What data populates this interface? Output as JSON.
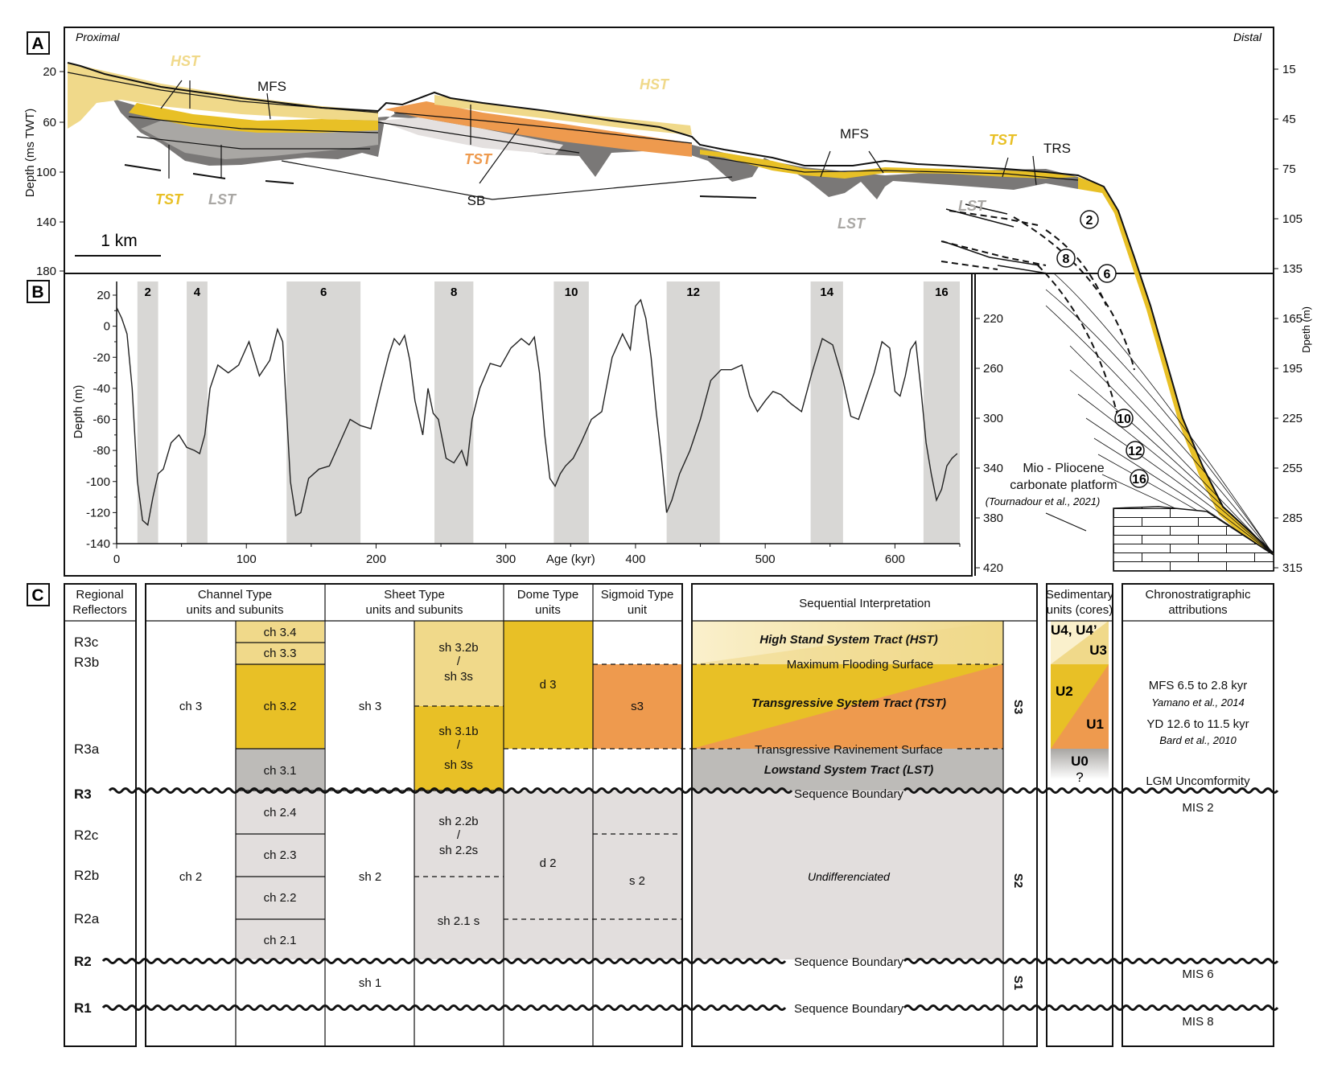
{
  "panel_a": {
    "letter": "A",
    "left_label": "Proximal",
    "right_label": "Distal",
    "left_axis_title": "Depth (ms TWT)",
    "left_ticks": [
      "20",
      "60",
      "100",
      "140",
      "180"
    ],
    "right_axis_title": "Dpeth (m)",
    "right_ticks": [
      "15",
      "45",
      "75",
      "105",
      "135",
      "165",
      "195",
      "225",
      "255",
      "285",
      "315"
    ],
    "scale_bar": "1 km",
    "labels": {
      "hst_1": "HST",
      "hst_2": "HST",
      "mfs_1": "MFS",
      "mfs_2": "MFS",
      "tst_1": "TST",
      "tst_2": "TST",
      "tst_3": "TST",
      "lst_1": "LST",
      "lst_2": "LST",
      "lst_3": "LST",
      "sb": "SB",
      "trs": "TRS"
    },
    "circled": [
      "2",
      "6",
      "8",
      "10",
      "12",
      "16"
    ],
    "platform_line1": "Mio - Pliocene",
    "platform_line2": "carbonate platform",
    "platform_ref": "(Tournadour et al., 2021)"
  },
  "panel_b": {
    "letter": "B",
    "right_ticks": [
      "220",
      "260",
      "300",
      "340",
      "380",
      "420"
    ]
  },
  "chart_data": {
    "type": "line",
    "xlabel": "Age (kyr)",
    "ylabel": "Depth (m)",
    "xlim": [
      0,
      650
    ],
    "ylim": [
      -140,
      20
    ],
    "x_ticks": [
      "0",
      "100",
      "200",
      "300",
      "400",
      "500",
      "600"
    ],
    "y_ticks": [
      "20",
      "0",
      "-20",
      "-40",
      "-60",
      "-80",
      "-100",
      "-120",
      "-140"
    ],
    "mis_bands": [
      {
        "label": "2",
        "start": 16,
        "end": 32
      },
      {
        "label": "4",
        "start": 54,
        "end": 70
      },
      {
        "label": "6",
        "start": 131,
        "end": 188
      },
      {
        "label": "8",
        "start": 245,
        "end": 275
      },
      {
        "label": "10",
        "start": 337,
        "end": 364
      },
      {
        "label": "12",
        "start": 424,
        "end": 465
      },
      {
        "label": "14",
        "start": 535,
        "end": 560
      },
      {
        "label": "16",
        "start": 622,
        "end": 650
      }
    ],
    "series": [
      {
        "x": [
          0,
          4,
          8,
          12,
          16,
          20,
          24,
          28,
          32,
          36,
          42,
          48,
          54,
          60,
          64,
          68,
          72,
          78,
          86,
          94,
          102,
          110,
          118,
          124,
          128,
          132,
          134,
          138,
          142,
          148,
          156,
          164,
          172,
          180,
          188,
          196,
          204,
          210,
          214,
          218,
          222,
          226,
          230,
          236,
          240,
          244,
          248,
          254,
          260,
          266,
          270,
          274,
          280,
          288,
          296,
          304,
          312,
          318,
          322,
          326,
          330,
          334,
          338,
          342,
          346,
          352,
          358,
          366,
          374,
          382,
          390,
          396,
          400,
          404,
          408,
          412,
          416,
          420,
          424,
          428,
          434,
          442,
          450,
          458,
          466,
          474,
          482,
          488,
          494,
          500,
          506,
          512,
          520,
          528,
          536,
          544,
          552,
          560,
          566,
          572,
          578,
          584,
          590,
          596,
          600,
          604,
          608,
          612,
          616,
          620,
          624,
          628,
          632,
          636,
          640,
          644,
          648
        ],
        "y": [
          12,
          5,
          -5,
          -40,
          -100,
          -125,
          -128,
          -110,
          -95,
          -92,
          -75,
          -70,
          -78,
          -80,
          -82,
          -70,
          -40,
          -25,
          -30,
          -25,
          -10,
          -32,
          -22,
          -2,
          -10,
          -70,
          -100,
          -122,
          -120,
          -98,
          -92,
          -90,
          -75,
          -60,
          -64,
          -66,
          -38,
          -18,
          -8,
          -12,
          -6,
          -22,
          -48,
          -70,
          -40,
          -56,
          -60,
          -85,
          -88,
          -80,
          -90,
          -60,
          -40,
          -24,
          -26,
          -14,
          -8,
          -12,
          -7,
          -30,
          -70,
          -98,
          -103,
          -95,
          -90,
          -85,
          -75,
          -60,
          -55,
          -20,
          -5,
          -15,
          13,
          17,
          5,
          -20,
          -55,
          -85,
          -120,
          -112,
          -95,
          -80,
          -60,
          -35,
          -28,
          -28,
          -25,
          -45,
          -55,
          -48,
          -42,
          -44,
          -50,
          -55,
          -30,
          -8,
          -12,
          -35,
          -58,
          -60,
          -45,
          -30,
          -10,
          -14,
          -42,
          -45,
          -32,
          -15,
          -10,
          -40,
          -75,
          -95,
          -112,
          -105,
          -90,
          -85,
          -82
        ]
      }
    ]
  },
  "panel_c": {
    "letter": "C",
    "headers": {
      "regional": "Regional Reflectors",
      "channel": "Channel Type units and subunits",
      "sheet": "Sheet Type units and subunits",
      "dome": "Dome Type units",
      "sigmoid": "Sigmoid Type unit",
      "sequential": "Sequential Interpretation",
      "sedimentary": "Sedimentary units (cores)",
      "chrono": "Chronostratigraphic attributions"
    },
    "reflectors": [
      "R3c",
      "R3b",
      "R3a",
      "R3",
      "R2c",
      "R2b",
      "R2a",
      "R2",
      "R1"
    ],
    "channel": {
      "main": [
        "ch 3",
        "ch 2"
      ],
      "sub": [
        "ch 3.4",
        "ch 3.3",
        "ch 3.2",
        "ch 3.1",
        "ch 2.4",
        "ch 2.3",
        "ch 2.2",
        "ch 2.1"
      ]
    },
    "sheet": {
      "main": [
        "sh 3",
        "sh 2",
        "sh 1"
      ],
      "sub_a1": "sh 3.2b",
      "sub_a2": "/",
      "sub_a3": "sh 3s",
      "sub_b1": "sh 3.1b",
      "sub_b2": "/",
      "sub_b3": "sh 3s",
      "sub_c1": "sh 2.2b",
      "sub_c2": "/",
      "sub_c3": "sh 2.2s",
      "sub_d": "sh 2.1 s"
    },
    "dome": [
      "d 3",
      "d 2"
    ],
    "sigmoid": [
      "s3",
      "s 2"
    ],
    "sequential": {
      "hst": "High Stand System Tract (HST)",
      "mfs": "Maximum Flooding Surface",
      "tst": "Transgressive System Tract (TST)",
      "trs": "Transgressive Ravinement Surface",
      "lst": "Lowstand System Tract (LST)",
      "sb": "Sequence Boundary",
      "undiff": "Undifferenciated",
      "seq_labels": [
        "S3",
        "S2",
        "S1"
      ]
    },
    "sedimentary": {
      "u4": "U4, U4’",
      "u3": "U3",
      "u2": "U2",
      "u1": "U1",
      "u0": "U0",
      "q": "?"
    },
    "chrono": {
      "mfs": "MFS 6.5 to 2.8 kyr",
      "mfs_ref": "Yamano et al., 2014",
      "yd": "YD 12.6 to 11.5 kyr",
      "yd_ref": "Bard et al., 2010",
      "lgm": "LGM Uncomformity",
      "mis2": "MIS 2",
      "mis6": "MIS 6",
      "mis8": "MIS 8"
    }
  },
  "colors": {
    "hst": "#f0d98a",
    "tst": "#e8c026",
    "orange": "#ee9a4e",
    "lst": "#bdbbb8",
    "undiff": "#e2dedd",
    "mis_band": "#d8d7d5",
    "dark_gray": "#7a7877"
  }
}
